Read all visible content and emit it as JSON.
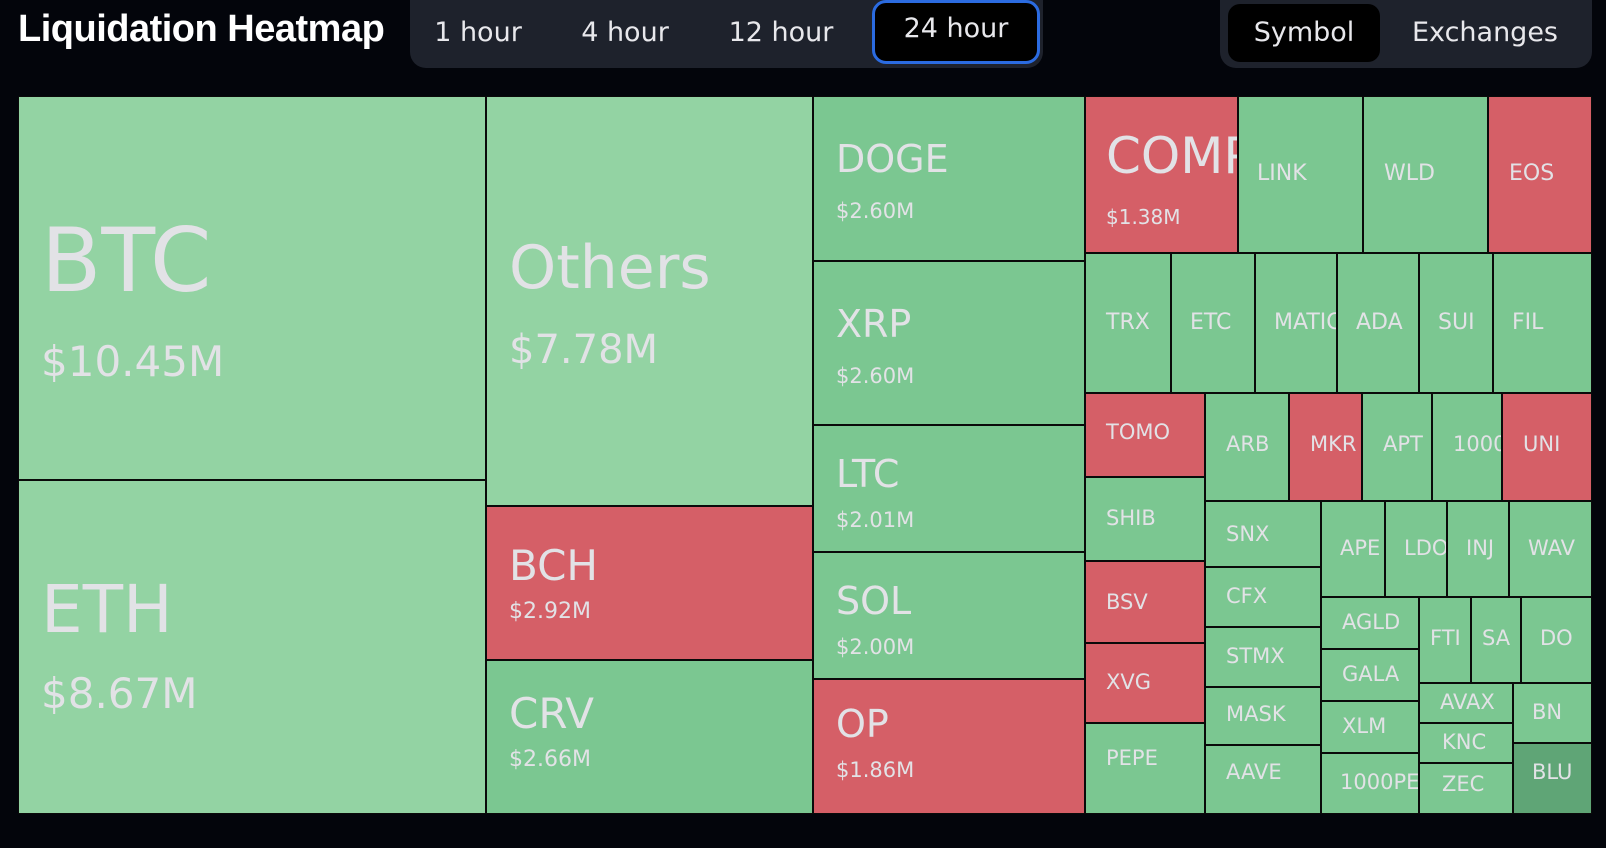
{
  "header": {
    "title": "Liquidation Heatmap"
  },
  "time_tabs": [
    {
      "label": "1 hour",
      "active": false
    },
    {
      "label": "4 hour",
      "active": false
    },
    {
      "label": "12 hour",
      "active": false
    },
    {
      "label": "24 hour",
      "active": true
    }
  ],
  "view_tabs": [
    {
      "label": "Symbol",
      "active": true
    },
    {
      "label": "Exchanges",
      "active": false
    }
  ],
  "colors": {
    "long_green_light": "#93d3a3",
    "long_green": "#7bc791",
    "short_red": "#d55f67",
    "background": "#03050b"
  },
  "tiles": [
    {
      "symbol": "BTC",
      "value": "$10.45M",
      "color": "g1"
    },
    {
      "symbol": "ETH",
      "value": "$8.67M",
      "color": "g1"
    },
    {
      "symbol": "Others",
      "value": "$7.78M",
      "color": "g1"
    },
    {
      "symbol": "BCH",
      "value": "$2.92M",
      "color": "r"
    },
    {
      "symbol": "CRV",
      "value": "$2.66M",
      "color": "g2"
    },
    {
      "symbol": "DOGE",
      "value": "$2.60M",
      "color": "g2"
    },
    {
      "symbol": "XRP",
      "value": "$2.60M",
      "color": "g2"
    },
    {
      "symbol": "LTC",
      "value": "$2.01M",
      "color": "g2"
    },
    {
      "symbol": "SOL",
      "value": "$2.00M",
      "color": "g2"
    },
    {
      "symbol": "OP",
      "value": "$1.86M",
      "color": "r"
    },
    {
      "symbol": "COMP",
      "value": "$1.38M",
      "color": "r"
    },
    {
      "symbol": "LINK",
      "value": "",
      "color": "g2"
    },
    {
      "symbol": "WLD",
      "value": "",
      "color": "g2"
    },
    {
      "symbol": "EOS",
      "value": "",
      "color": "r"
    },
    {
      "symbol": "TRX",
      "value": "",
      "color": "g2"
    },
    {
      "symbol": "ETC",
      "value": "",
      "color": "g2"
    },
    {
      "symbol": "MATIC",
      "value": "",
      "color": "g2"
    },
    {
      "symbol": "ADA",
      "value": "",
      "color": "g2"
    },
    {
      "symbol": "SUI",
      "value": "",
      "color": "g2"
    },
    {
      "symbol": "FIL",
      "value": "",
      "color": "g2"
    },
    {
      "symbol": "TOMO",
      "value": "",
      "color": "r"
    },
    {
      "symbol": "ARB",
      "value": "",
      "color": "g2"
    },
    {
      "symbol": "MKR",
      "value": "",
      "color": "r"
    },
    {
      "symbol": "APT",
      "value": "",
      "color": "g2"
    },
    {
      "symbol": "1000",
      "value": "",
      "color": "g2"
    },
    {
      "symbol": "UNI",
      "value": "",
      "color": "r"
    },
    {
      "symbol": "SHIB",
      "value": "",
      "color": "g2"
    },
    {
      "symbol": "SNX",
      "value": "",
      "color": "g2"
    },
    {
      "symbol": "APE",
      "value": "",
      "color": "g2"
    },
    {
      "symbol": "LDO",
      "value": "",
      "color": "g2"
    },
    {
      "symbol": "INJ",
      "value": "",
      "color": "g2"
    },
    {
      "symbol": "WAV",
      "value": "",
      "color": "g2"
    },
    {
      "symbol": "BSV",
      "value": "",
      "color": "r"
    },
    {
      "symbol": "CFX",
      "value": "",
      "color": "g2"
    },
    {
      "symbol": "AGLD",
      "value": "",
      "color": "g2"
    },
    {
      "symbol": "FTI",
      "value": "",
      "color": "g2"
    },
    {
      "symbol": "SA",
      "value": "",
      "color": "g2"
    },
    {
      "symbol": "DO",
      "value": "",
      "color": "g2"
    },
    {
      "symbol": "XVG",
      "value": "",
      "color": "r"
    },
    {
      "symbol": "STMX",
      "value": "",
      "color": "g2"
    },
    {
      "symbol": "GALA",
      "value": "",
      "color": "g2"
    },
    {
      "symbol": "AVAX",
      "value": "",
      "color": "g2"
    },
    {
      "symbol": "BN",
      "value": "",
      "color": "g2"
    },
    {
      "symbol": "MASK",
      "value": "",
      "color": "g2"
    },
    {
      "symbol": "XLM",
      "value": "",
      "color": "g2"
    },
    {
      "symbol": "KNC",
      "value": "",
      "color": "g2"
    },
    {
      "symbol": "PEPE",
      "value": "",
      "color": "g2"
    },
    {
      "symbol": "AAVE",
      "value": "",
      "color": "g2"
    },
    {
      "symbol": "1000PE",
      "value": "",
      "color": "g2"
    },
    {
      "symbol": "ZEC",
      "value": "",
      "color": "g2"
    },
    {
      "symbol": "BLU",
      "value": "",
      "color": "dg"
    }
  ]
}
